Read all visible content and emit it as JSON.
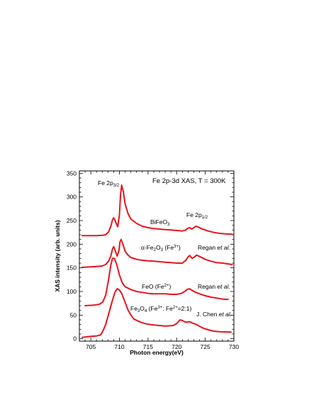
{
  "chart_data": {
    "type": "line",
    "title": "Fe 2p-3d XAS, T = 300K",
    "xlabel": "Photon energy(eV)",
    "ylabel": "XAS intensity (arb. units)",
    "xlim": [
      703,
      730
    ],
    "ylim": [
      -5,
      355
    ],
    "xticks": [
      705,
      710,
      715,
      720,
      725,
      730
    ],
    "yticks": [
      0,
      50,
      100,
      150,
      200,
      250,
      300,
      350
    ],
    "minor_x_step": 1,
    "minor_y_step": 10,
    "line_color": "#e8141c",
    "grid": false,
    "legend": "none",
    "series": [
      {
        "points": [
          [
            703.5,
            218
          ],
          [
            705,
            218
          ],
          [
            706,
            218
          ],
          [
            707,
            219
          ],
          [
            707.6,
            220
          ],
          [
            708.1,
            226
          ],
          [
            708.5,
            238
          ],
          [
            708.8,
            252
          ],
          [
            709.0,
            256
          ],
          [
            709.3,
            248
          ],
          [
            709.7,
            237
          ],
          [
            710.0,
            262
          ],
          [
            710.2,
            305
          ],
          [
            710.4,
            325
          ],
          [
            710.7,
            310
          ],
          [
            711.0,
            285
          ],
          [
            711.5,
            265
          ],
          [
            712,
            253
          ],
          [
            713,
            244
          ],
          [
            714,
            238
          ],
          [
            715,
            235
          ],
          [
            716,
            233
          ],
          [
            717,
            232
          ],
          [
            718,
            231
          ],
          [
            719,
            230
          ],
          [
            720,
            229
          ],
          [
            721,
            228
          ],
          [
            721.6,
            230
          ],
          [
            722,
            234
          ],
          [
            722.3,
            235
          ],
          [
            722.6,
            232
          ],
          [
            723.0,
            235
          ],
          [
            723.4,
            238
          ],
          [
            723.8,
            236
          ],
          [
            724.5,
            232
          ],
          [
            725.5,
            228
          ],
          [
            726.5,
            225
          ],
          [
            727.5,
            223
          ],
          [
            728.5,
            222
          ],
          [
            729.7,
            221
          ]
        ]
      },
      {
        "points": [
          [
            703.5,
            151
          ],
          [
            705,
            152
          ],
          [
            706,
            153
          ],
          [
            707,
            154
          ],
          [
            707.6,
            157
          ],
          [
            708.1,
            164
          ],
          [
            708.5,
            175
          ],
          [
            708.8,
            190
          ],
          [
            709.0,
            195
          ],
          [
            709.3,
            185
          ],
          [
            709.6,
            175
          ],
          [
            709.9,
            185
          ],
          [
            710.1,
            205
          ],
          [
            710.3,
            210
          ],
          [
            710.6,
            200
          ],
          [
            711.0,
            185
          ],
          [
            711.5,
            177
          ],
          [
            712,
            172
          ],
          [
            713,
            168
          ],
          [
            714,
            166
          ],
          [
            715,
            165
          ],
          [
            716,
            164
          ],
          [
            717,
            163
          ],
          [
            718,
            162
          ],
          [
            719,
            161
          ],
          [
            720,
            160
          ],
          [
            721,
            160
          ],
          [
            721.6,
            166
          ],
          [
            722,
            173
          ],
          [
            722.3,
            176
          ],
          [
            722.7,
            170
          ],
          [
            723.1,
            173
          ],
          [
            723.5,
            177
          ],
          [
            724,
            174
          ],
          [
            725,
            168
          ],
          [
            726,
            164
          ],
          [
            727,
            161
          ],
          [
            728,
            160
          ],
          [
            729.7,
            157
          ]
        ]
      },
      {
        "points": [
          [
            704,
            70
          ],
          [
            705.5,
            71
          ],
          [
            706.5,
            73
          ],
          [
            707.1,
            78
          ],
          [
            707.6,
            92
          ],
          [
            708.1,
            125
          ],
          [
            708.5,
            156
          ],
          [
            708.8,
            170
          ],
          [
            709.1,
            170
          ],
          [
            709.5,
            158
          ],
          [
            710,
            135
          ],
          [
            710.5,
            118
          ],
          [
            711,
            110
          ],
          [
            712,
            104
          ],
          [
            713,
            100
          ],
          [
            714,
            98
          ],
          [
            715,
            96
          ],
          [
            716,
            95
          ],
          [
            717,
            95
          ],
          [
            718,
            95
          ],
          [
            719,
            94
          ],
          [
            720,
            94
          ],
          [
            720.8,
            96
          ],
          [
            721.4,
            100
          ],
          [
            721.8,
            104
          ],
          [
            722.2,
            106
          ],
          [
            722.6,
            103
          ],
          [
            723.2,
            99
          ],
          [
            724,
            95
          ],
          [
            725,
            91
          ],
          [
            726,
            88
          ],
          [
            727,
            86
          ],
          [
            728,
            84
          ],
          [
            729,
            83
          ]
        ]
      },
      {
        "points": [
          [
            703.5,
            3
          ],
          [
            705,
            5
          ],
          [
            706,
            6
          ],
          [
            706.7,
            8
          ],
          [
            707.1,
            16
          ],
          [
            707.6,
            30
          ],
          [
            708.1,
            52
          ],
          [
            708.7,
            78
          ],
          [
            709.2,
            98
          ],
          [
            709.6,
            106
          ],
          [
            710.0,
            103
          ],
          [
            710.4,
            96
          ],
          [
            710.9,
            80
          ],
          [
            711.5,
            61
          ],
          [
            712,
            50
          ],
          [
            712.5,
            42
          ],
          [
            713.5,
            36
          ],
          [
            714.5,
            32
          ],
          [
            715.5,
            30
          ],
          [
            716,
            29
          ],
          [
            717,
            28
          ],
          [
            718,
            27
          ],
          [
            719.4,
            28
          ],
          [
            720.0,
            32
          ],
          [
            720.6,
            40
          ],
          [
            721.1,
            38
          ],
          [
            721.5,
            35
          ],
          [
            722.3,
            36
          ],
          [
            722.8,
            33
          ],
          [
            723.5,
            30
          ],
          [
            724.5,
            23
          ],
          [
            725.5,
            19
          ],
          [
            726.5,
            16
          ],
          [
            727.5,
            15
          ],
          [
            729.5,
            14
          ]
        ]
      }
    ]
  },
  "annotations": {
    "fe2p32_main": "Fe 2p",
    "fe2p32_sub": "3/2",
    "fe2p12_main": "Fe 2p",
    "fe2p12_sub": "1/2",
    "bifeo3_main": "BiFeO",
    "bifeo3_sub": "3",
    "fe2o3_prefix": "α-Fe",
    "fe2o3_sub1": "2",
    "fe2o3_mid": "O",
    "fe2o3_sub2": "3",
    "fe2o3_paren_open": " (Fe",
    "fe2o3_sup": "3+",
    "fe2o3_paren_close": ")",
    "regan1_name": "Regan ",
    "regan1_etal": "et al.",
    "feo_main": "FeO (Fe",
    "feo_sup": "2+",
    "feo_close": ")",
    "regan2_name": "Regan ",
    "regan2_etal": "et al.",
    "fe3o4_prefix": "Fe",
    "fe3o4_sub1": "3",
    "fe3o4_mid": "O",
    "fe3o4_sub2": "4",
    "fe3o4_open": " (Fe",
    "fe3o4_sup1": "3+",
    "fe3o4_colon": ": Fe",
    "fe3o4_sup2": "2+",
    "fe3o4_ratio": "=2:1)",
    "chen_name": "J. Chen ",
    "chen_etal": "et al."
  }
}
